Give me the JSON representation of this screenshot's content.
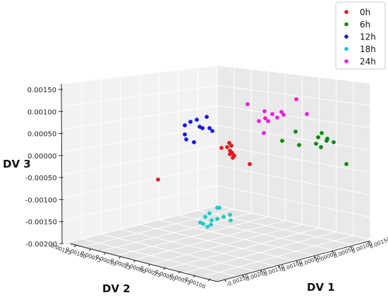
{
  "chart_data": {
    "type": "scatter",
    "projection": "3d",
    "xlabel": "DV 1",
    "ylabel": "DV 2",
    "zlabel": "DV 3",
    "x_ticks": [
      "-0.00250",
      "-0.00200",
      "-0.00150",
      "-0.00100",
      "-0.00050",
      "0.00000",
      "0.00050",
      "0.00100",
      "0.00150"
    ],
    "y_ticks": [
      "-0.00100",
      "-0.00075",
      "-0.00050",
      "-0.00025",
      "0.00000",
      "0.00025",
      "0.00050",
      "0.00075",
      "0.00100",
      "0.00125"
    ],
    "z_ticks": [
      "-0.00200",
      "-0.00150",
      "-0.00100",
      "-0.00050",
      "0.00000",
      "0.00050",
      "0.00100",
      "0.00150"
    ],
    "legend_position": "top-right",
    "series": [
      {
        "name": "0h",
        "color": "#e8141b",
        "points": [
          [
            314,
            210
          ],
          [
            322,
            209
          ],
          [
            325,
            203
          ],
          [
            328,
            207
          ],
          [
            326,
            214
          ],
          [
            329,
            217
          ],
          [
            332,
            221
          ],
          [
            326,
            219
          ],
          [
            330,
            224
          ],
          [
            354,
            233
          ],
          [
            224,
            255
          ]
        ]
      },
      {
        "name": "6h",
        "color": "#0a8a0a",
        "points": [
          [
            400,
            200
          ],
          [
            419,
            187
          ],
          [
            424,
            206
          ],
          [
            451,
            195
          ],
          [
            456,
            189
          ],
          [
            448,
            204
          ],
          [
            455,
            209
          ],
          [
            463,
            200
          ],
          [
            464,
            197
          ],
          [
            473,
            202
          ],
          [
            491,
            233
          ]
        ]
      },
      {
        "name": "12h",
        "color": "#1616e0",
        "points": [
          [
            262,
            178
          ],
          [
            270,
            173
          ],
          [
            279,
            170
          ],
          [
            283,
            180
          ],
          [
            287,
            182
          ],
          [
            293,
            166
          ],
          [
            297,
            182
          ],
          [
            301,
            186
          ],
          [
            262,
            191
          ],
          [
            264,
            198
          ],
          [
            275,
            202
          ]
        ]
      },
      {
        "name": "18h",
        "color": "#18cbc5",
        "points": [
          [
            308,
            295
          ],
          [
            311,
            295
          ],
          [
            297,
            303
          ],
          [
            291,
            308
          ],
          [
            300,
            313
          ],
          [
            308,
            311
          ],
          [
            317,
            308
          ],
          [
            326,
            305
          ],
          [
            327,
            313
          ],
          [
            284,
            316
          ],
          [
            288,
            318
          ],
          [
            299,
            319
          ],
          [
            294,
            322
          ]
        ]
      },
      {
        "name": "24h",
        "color": "#e81ee0",
        "points": [
          [
            351,
            148
          ],
          [
            375,
            158
          ],
          [
            386,
            162
          ],
          [
            399,
            159
          ],
          [
            402,
            163
          ],
          [
            420,
            141
          ],
          [
            435,
            162
          ],
          [
            376,
            168
          ],
          [
            380,
            172
          ],
          [
            393,
            167
          ],
          [
            367,
            172
          ],
          [
            374,
            189
          ]
        ]
      }
    ]
  }
}
